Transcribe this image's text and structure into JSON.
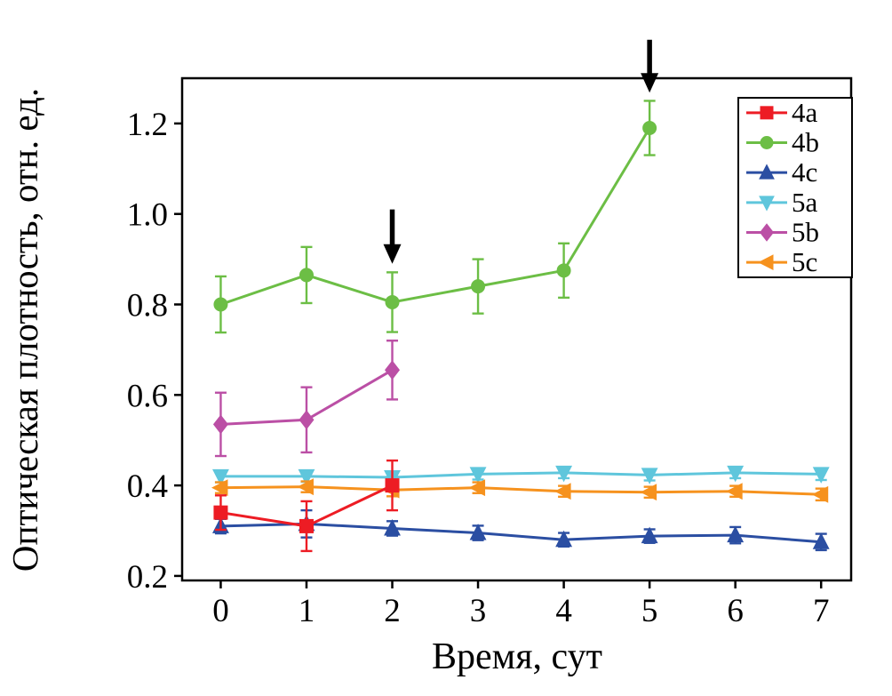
{
  "figure": {
    "background": "#ffffff",
    "frame_color": "#000000"
  },
  "chart_data": {
    "type": "line",
    "title": "",
    "xlabel": "Время, сут",
    "ylabel": "Оптическая плотность, отн. ед.",
    "xlim": [
      -0.45,
      7.35
    ],
    "ylim": [
      0.19,
      1.3
    ],
    "xticks": [
      0,
      1,
      2,
      3,
      4,
      5,
      6,
      7
    ],
    "yticks": [
      0.2,
      0.4,
      0.6,
      0.8,
      1.0,
      1.2
    ],
    "grid": false,
    "legend_position": "top-right",
    "legend_border_color": "#000000",
    "series": [
      {
        "name": "4a",
        "color": "#ed1c24",
        "marker": "square",
        "x": [
          0,
          1,
          2
        ],
        "y": [
          0.34,
          0.31,
          0.4
        ],
        "yerr": [
          0.038,
          0.055,
          0.055
        ]
      },
      {
        "name": "4b",
        "color": "#6cbe45",
        "marker": "circle",
        "x": [
          0,
          1,
          2,
          3,
          4,
          5
        ],
        "y": [
          0.8,
          0.865,
          0.805,
          0.84,
          0.875,
          1.19
        ],
        "yerr": [
          0.062,
          0.062,
          0.066,
          0.06,
          0.06,
          0.06
        ]
      },
      {
        "name": "4c",
        "color": "#2b4ea2",
        "marker": "triangle-up",
        "x": [
          0,
          1,
          2,
          3,
          4,
          5,
          6,
          7
        ],
        "y": [
          0.31,
          0.315,
          0.305,
          0.295,
          0.28,
          0.288,
          0.29,
          0.275
        ],
        "yerr": [
          0.016,
          0.03,
          0.016,
          0.016,
          0.015,
          0.015,
          0.018,
          0.018
        ]
      },
      {
        "name": "5a",
        "color": "#5fc6dc",
        "marker": "triangle-down",
        "x": [
          0,
          1,
          2,
          3,
          4,
          5,
          6,
          7
        ],
        "y": [
          0.42,
          0.42,
          0.418,
          0.425,
          0.428,
          0.423,
          0.428,
          0.425
        ],
        "yerr": [
          0.013,
          0.012,
          0.012,
          0.012,
          0.012,
          0.012,
          0.012,
          0.013
        ]
      },
      {
        "name": "5b",
        "color": "#bb4fa5",
        "marker": "diamond",
        "x": [
          0,
          1,
          2
        ],
        "y": [
          0.535,
          0.545,
          0.655
        ],
        "yerr": [
          0.07,
          0.072,
          0.065
        ]
      },
      {
        "name": "5c",
        "color": "#f6921e",
        "marker": "triangle-left",
        "x": [
          0,
          1,
          2,
          3,
          4,
          5,
          6,
          7
        ],
        "y": [
          0.395,
          0.397,
          0.39,
          0.395,
          0.387,
          0.385,
          0.387,
          0.38
        ],
        "yerr": [
          0.012,
          0.012,
          0.014,
          0.012,
          0.012,
          0.012,
          0.012,
          0.013
        ]
      }
    ],
    "annotations": [
      {
        "type": "arrow",
        "color": "#000000",
        "x": 2,
        "y_from": 1.01,
        "y_to": 0.89
      },
      {
        "type": "arrow",
        "color": "#000000",
        "x": 5,
        "y_from": 1.385,
        "y_to": 1.268
      }
    ],
    "draw_order": [
      "4b",
      "5b",
      "4c",
      "5a",
      "5c",
      "4a"
    ]
  }
}
